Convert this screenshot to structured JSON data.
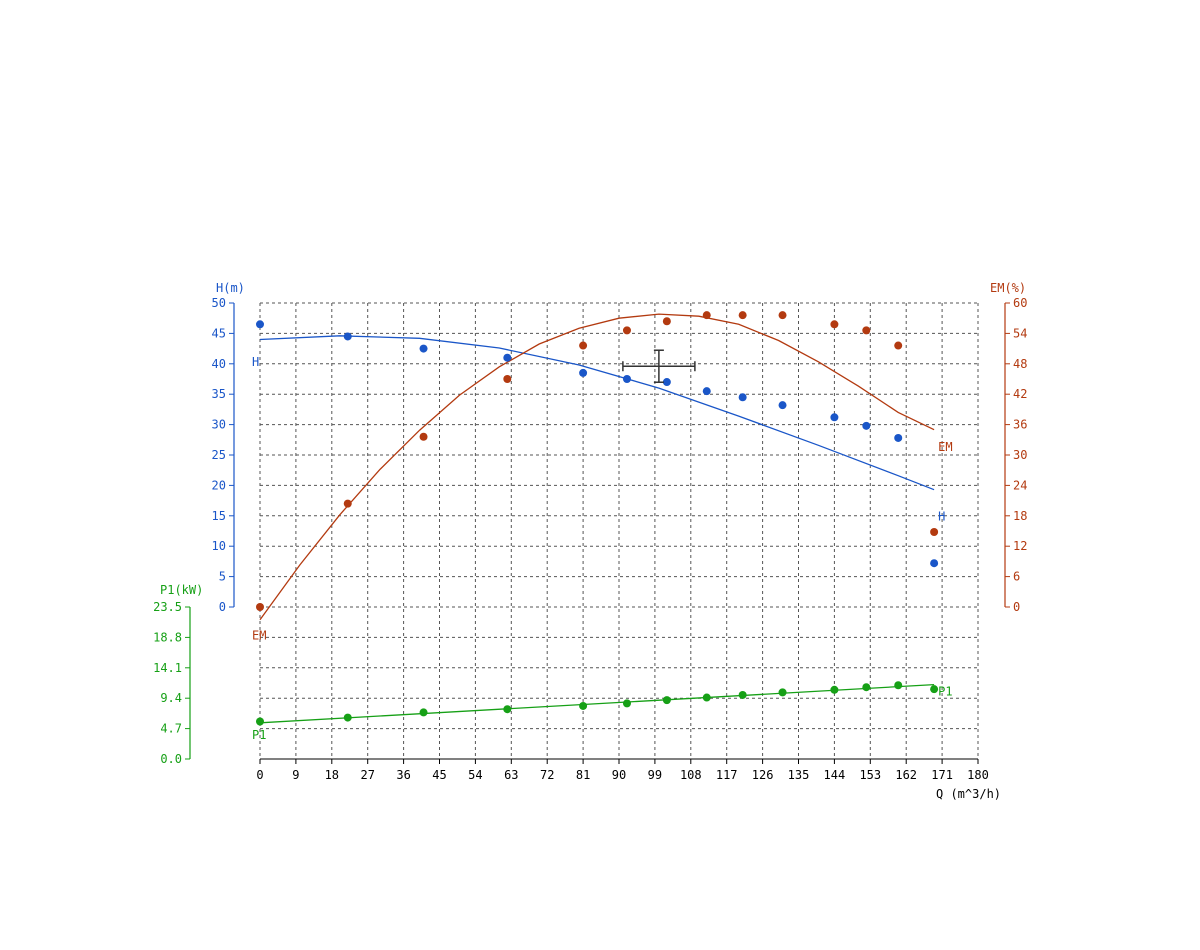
{
  "chart_data": {
    "type": "line",
    "x_axis": {
      "label": "Q (m^3/h)",
      "range": [
        0,
        180
      ],
      "ticks": [
        "0",
        "9",
        "18",
        "27",
        "36",
        "45",
        "54",
        "63",
        "72",
        "81",
        "90",
        "99",
        "108",
        "117",
        "126",
        "135",
        "144",
        "153",
        "162",
        "171",
        "180"
      ]
    },
    "y_axes": {
      "H": {
        "label": "H(m)",
        "range": [
          0,
          50
        ],
        "ticks": [
          "0",
          "5",
          "10",
          "15",
          "20",
          "25",
          "30",
          "35",
          "40",
          "45",
          "50"
        ],
        "color": "#1a56c8"
      },
      "EM": {
        "label": "EM(%)",
        "range": [
          0,
          60
        ],
        "ticks": [
          "0",
          "6",
          "12",
          "18",
          "24",
          "30",
          "36",
          "42",
          "48",
          "54",
          "60"
        ],
        "color": "#b33a10"
      },
      "P1": {
        "label": "P1(kW)",
        "range": [
          0,
          23.5
        ],
        "ticks": [
          "0.0",
          "4.7",
          "9.4",
          "14.1",
          "18.8",
          "23.5"
        ],
        "color": "#16a016"
      }
    },
    "grid": true,
    "series": [
      {
        "name": "H",
        "axis": "H",
        "color": "#1a56c8",
        "points_x": [
          0,
          22,
          41,
          62,
          81,
          92,
          102,
          112,
          121,
          131,
          144,
          152,
          160,
          169
        ],
        "points_y": [
          46.5,
          44.5,
          42.5,
          41,
          38.5,
          37.5,
          37,
          35.5,
          34.5,
          33.2,
          31.2,
          29.8,
          27.8,
          7.2
        ],
        "curve_x": [
          0,
          20,
          40,
          60,
          80,
          100,
          120,
          140,
          160,
          169
        ],
        "curve_y": [
          44,
          44.6,
          44.2,
          42.6,
          39.8,
          36,
          31.4,
          26.6,
          21.6,
          19.3
        ]
      },
      {
        "name": "EM",
        "axis": "EM",
        "color": "#b33a10",
        "points_x": [
          0,
          22,
          41,
          62,
          81,
          92,
          102,
          112,
          121,
          131,
          144,
          152,
          160,
          169
        ],
        "points_y": [
          0,
          20.4,
          33.6,
          45,
          51.6,
          54.6,
          56.4,
          57.6,
          57.6,
          57.6,
          55.8,
          54.6,
          51.6,
          14.8
        ],
        "curve_x": [
          0,
          10,
          20,
          30,
          40,
          50,
          60,
          70,
          80,
          90,
          100,
          110,
          120,
          130,
          140,
          150,
          160,
          169
        ],
        "curve_y": [
          -2.5,
          8.3,
          18.2,
          27.1,
          34.9,
          41.8,
          47.4,
          51.9,
          55,
          57,
          57.8,
          57.4,
          55.8,
          52.6,
          48.4,
          43.6,
          38.4,
          35
        ]
      },
      {
        "name": "P1",
        "axis": "P1",
        "color": "#16a016",
        "points_x": [
          0,
          22,
          41,
          62,
          81,
          92,
          102,
          112,
          121,
          131,
          144,
          152,
          160,
          169
        ],
        "points_y": [
          5.8,
          6.4,
          7.2,
          7.7,
          8.2,
          8.6,
          9.1,
          9.5,
          9.9,
          10.3,
          10.7,
          11.1,
          11.4,
          10.8
        ],
        "curve_x": [
          0,
          169
        ],
        "curve_y": [
          5.6,
          11.5
        ]
      }
    ],
    "series_labels": [
      {
        "text": "H",
        "series": "H",
        "x": 0,
        "y": 39.6
      },
      {
        "text": "H",
        "series": "H",
        "x": 169,
        "y": 14.2
      },
      {
        "text": "EM",
        "series": "EM",
        "x": 0,
        "y": -6.4
      },
      {
        "text": "EM",
        "series": "EM",
        "x": 169,
        "y": 30.8
      },
      {
        "text": "P1",
        "series": "P1",
        "x": 0,
        "y": 3.1
      },
      {
        "text": "P1",
        "series": "P1",
        "x": 169,
        "y": 9.8
      }
    ],
    "marker": {
      "x": 100,
      "y_H": 39.6
    }
  }
}
